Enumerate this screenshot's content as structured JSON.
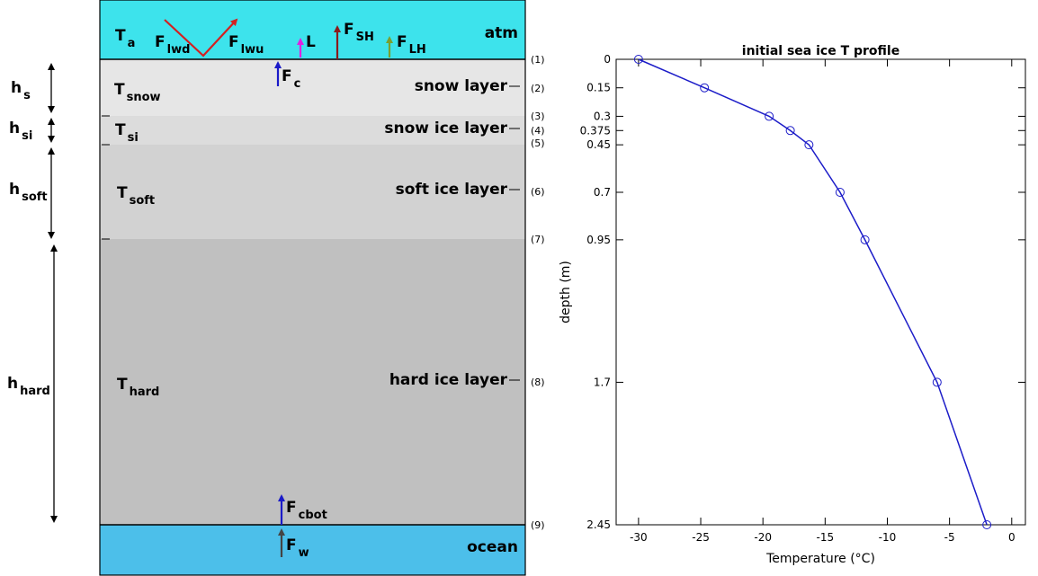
{
  "diagram": {
    "layers": [
      {
        "name": "atm",
        "color": "#3de3ec"
      },
      {
        "name": "snow layer",
        "color": "#e6e6e6"
      },
      {
        "name": "snow ice layer",
        "color": "#dcdcdc"
      },
      {
        "name": "soft ice layer",
        "color": "#d2d2d2"
      },
      {
        "name": "hard ice layer",
        "color": "#c0c0c0"
      },
      {
        "name": "ocean",
        "color": "#4cbfea"
      }
    ],
    "symbols": [
      {
        "main": "T",
        "sub": "a"
      },
      {
        "main": "F",
        "sub": "lwd"
      },
      {
        "main": "F",
        "sub": "lwu"
      },
      {
        "main": "L"
      },
      {
        "main": "F",
        "sub": "SH"
      },
      {
        "main": "F",
        "sub": "LH"
      },
      {
        "main": "F",
        "sub": "c"
      },
      {
        "main": "T",
        "sub": "snow"
      },
      {
        "main": "T",
        "sub": "si"
      },
      {
        "main": "T",
        "sub": "soft"
      },
      {
        "main": "T",
        "sub": "hard"
      },
      {
        "main": "F",
        "sub": "cbot"
      },
      {
        "main": "F",
        "sub": "w"
      },
      {
        "main": "h",
        "sub": "s"
      },
      {
        "main": "h",
        "sub": "si"
      },
      {
        "main": "h",
        "sub": "soft"
      },
      {
        "main": "h",
        "sub": "hard"
      }
    ],
    "levels": [
      "(1)",
      "(2)",
      "(3)",
      "(4)",
      "(5)",
      "(6)",
      "(7)",
      "(8)",
      "(9)"
    ]
  },
  "chart_data": {
    "type": "line",
    "title": "initial sea ice T profile",
    "x_label": "Temperature (°C)",
    "y_label": "depth (m)",
    "x": [
      -30,
      -24.7,
      -19.5,
      -17.8,
      -16.3,
      -13.8,
      -11.8,
      -6,
      -2
    ],
    "values": [
      0,
      0.15,
      0.3,
      0.375,
      0.45,
      0.7,
      0.95,
      1.7,
      2.45
    ],
    "color": "#1c1cc8",
    "marker": "open-circle",
    "xlim": [
      -31.8,
      1.1
    ],
    "xticks": [
      -30,
      -25,
      -20,
      -15,
      -10,
      -5,
      0
    ],
    "ylim": [
      0,
      2.45
    ],
    "y_inverted": true,
    "yticks": [
      0,
      0.15,
      0.3,
      0.375,
      0.45,
      0.7,
      0.95,
      1.7,
      2.45
    ]
  }
}
